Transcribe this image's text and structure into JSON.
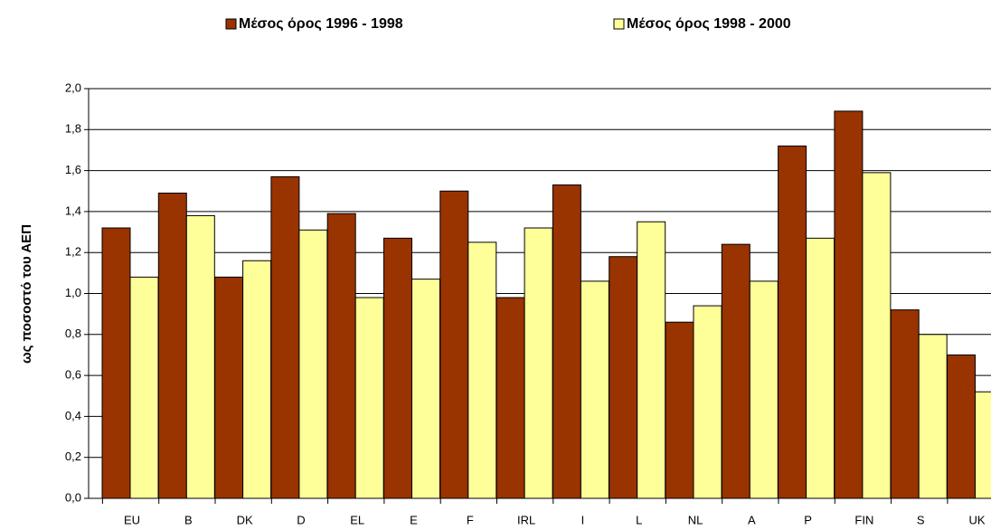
{
  "chart_data": {
    "type": "bar",
    "y_label": "ως ποσοστό του ΑΕΠ",
    "categories": [
      "EU",
      "B",
      "DK",
      "D",
      "EL",
      "E",
      "F",
      "IRL",
      "I",
      "L",
      "NL",
      "A",
      "P",
      "FIN",
      "S",
      "UK"
    ],
    "series": [
      {
        "name": "Μέσος όρος 1996 - 1998",
        "color": "#993300",
        "values": [
          1.32,
          1.49,
          1.08,
          1.57,
          1.39,
          1.27,
          1.5,
          0.98,
          1.53,
          1.18,
          0.86,
          1.24,
          1.72,
          1.89,
          0.92,
          0.7
        ]
      },
      {
        "name": "Μέσος όρος 1998 - 2000",
        "color": "#ffff99",
        "values": [
          1.08,
          1.38,
          1.16,
          1.31,
          0.98,
          1.07,
          1.25,
          1.32,
          1.06,
          1.35,
          0.94,
          1.06,
          1.27,
          1.59,
          0.8,
          0.52
        ]
      }
    ],
    "ylim": [
      0,
      2
    ],
    "yticks": [
      {
        "value": 0,
        "label": "0,0"
      },
      {
        "value": 0.2,
        "label": "0,2"
      },
      {
        "value": 0.4,
        "label": "0,4"
      },
      {
        "value": 0.6,
        "label": "0,6"
      },
      {
        "value": 0.8,
        "label": "0,8"
      },
      {
        "value": 1,
        "label": "1,0"
      },
      {
        "value": 1.2,
        "label": "1,2"
      },
      {
        "value": 1.4,
        "label": "1,4"
      },
      {
        "value": 1.6,
        "label": "1,6"
      },
      {
        "value": 1.8,
        "label": "1,8"
      },
      {
        "value": 2,
        "label": "2,0"
      }
    ],
    "grid": true,
    "legend": "top"
  }
}
